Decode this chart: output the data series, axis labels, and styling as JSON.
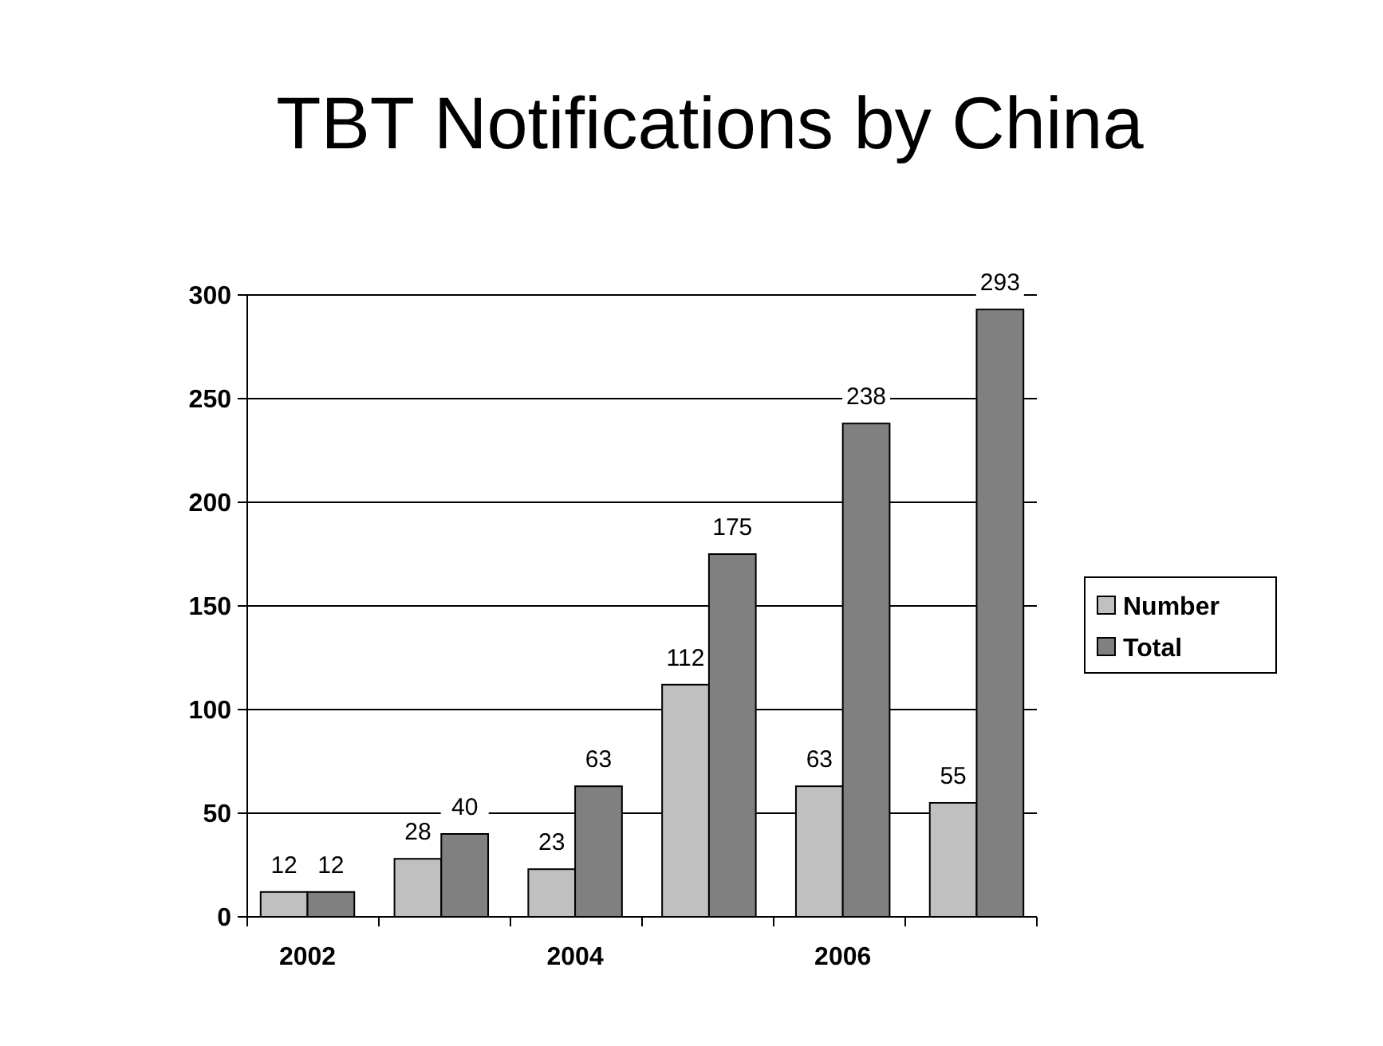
{
  "chart_data": {
    "type": "bar",
    "title": "TBT Notifications by China",
    "categories": [
      "2002",
      null,
      "2004",
      null,
      "2006",
      null
    ],
    "series": [
      {
        "name": "Number",
        "color": "#c0c0c0",
        "values": [
          12,
          28,
          23,
          112,
          63,
          55
        ]
      },
      {
        "name": "Total",
        "color": "#808080",
        "values": [
          12,
          40,
          63,
          175,
          238,
          293
        ]
      }
    ],
    "ylim": [
      0,
      300
    ],
    "yticks": [
      0,
      50,
      100,
      150,
      200,
      250,
      300
    ],
    "grid": "y",
    "legend": "right",
    "data_labels": true
  }
}
